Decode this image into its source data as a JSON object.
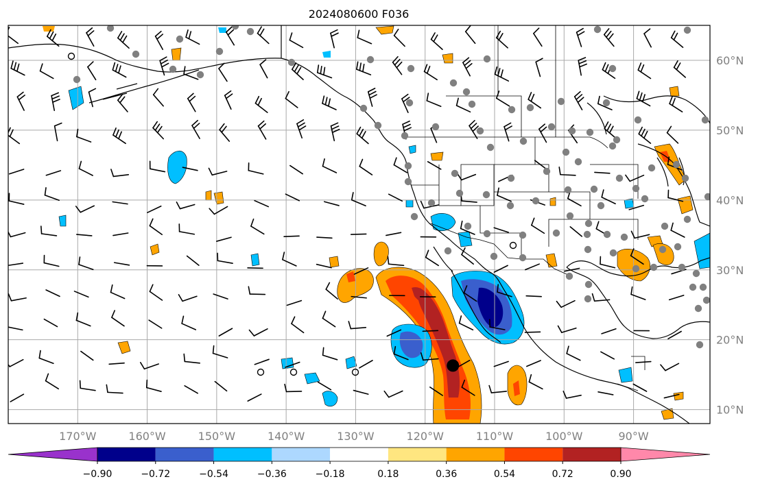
{
  "title": "2024080600 F036",
  "map": {
    "lon_range": [
      -180,
      -79
    ],
    "lat_range": [
      8,
      65
    ],
    "lat_ticks": [
      "60°N",
      "50°N",
      "40°N",
      "30°N",
      "20°N",
      "10°N"
    ],
    "lat_values": [
      60,
      50,
      40,
      30,
      20,
      10
    ],
    "lon_ticks": [
      "170°W",
      "160°W",
      "150°W",
      "140°W",
      "130°W",
      "120°W",
      "110°W",
      "100°W",
      "90°W"
    ],
    "lon_values": [
      -170,
      -160,
      -150,
      -140,
      -130,
      -120,
      -110,
      -100,
      -90
    ],
    "gridlines": true
  },
  "colorbar": {
    "labels": [
      "−0.90",
      "−0.72",
      "−0.54",
      "−0.36",
      "−0.18",
      "0.18",
      "0.36",
      "0.54",
      "0.72",
      "0.90"
    ],
    "colors": [
      "#9932cc",
      "#00008b",
      "#3a5fcd",
      "#00bfff",
      "#add8ff",
      "#ffffff",
      "#ffe680",
      "#ffa500",
      "#ff4500",
      "#b22222",
      "#ff88aa"
    ],
    "extend": "both"
  },
  "markers": {
    "black_dot": {
      "lon": -116,
      "lat": 16.3
    }
  }
}
